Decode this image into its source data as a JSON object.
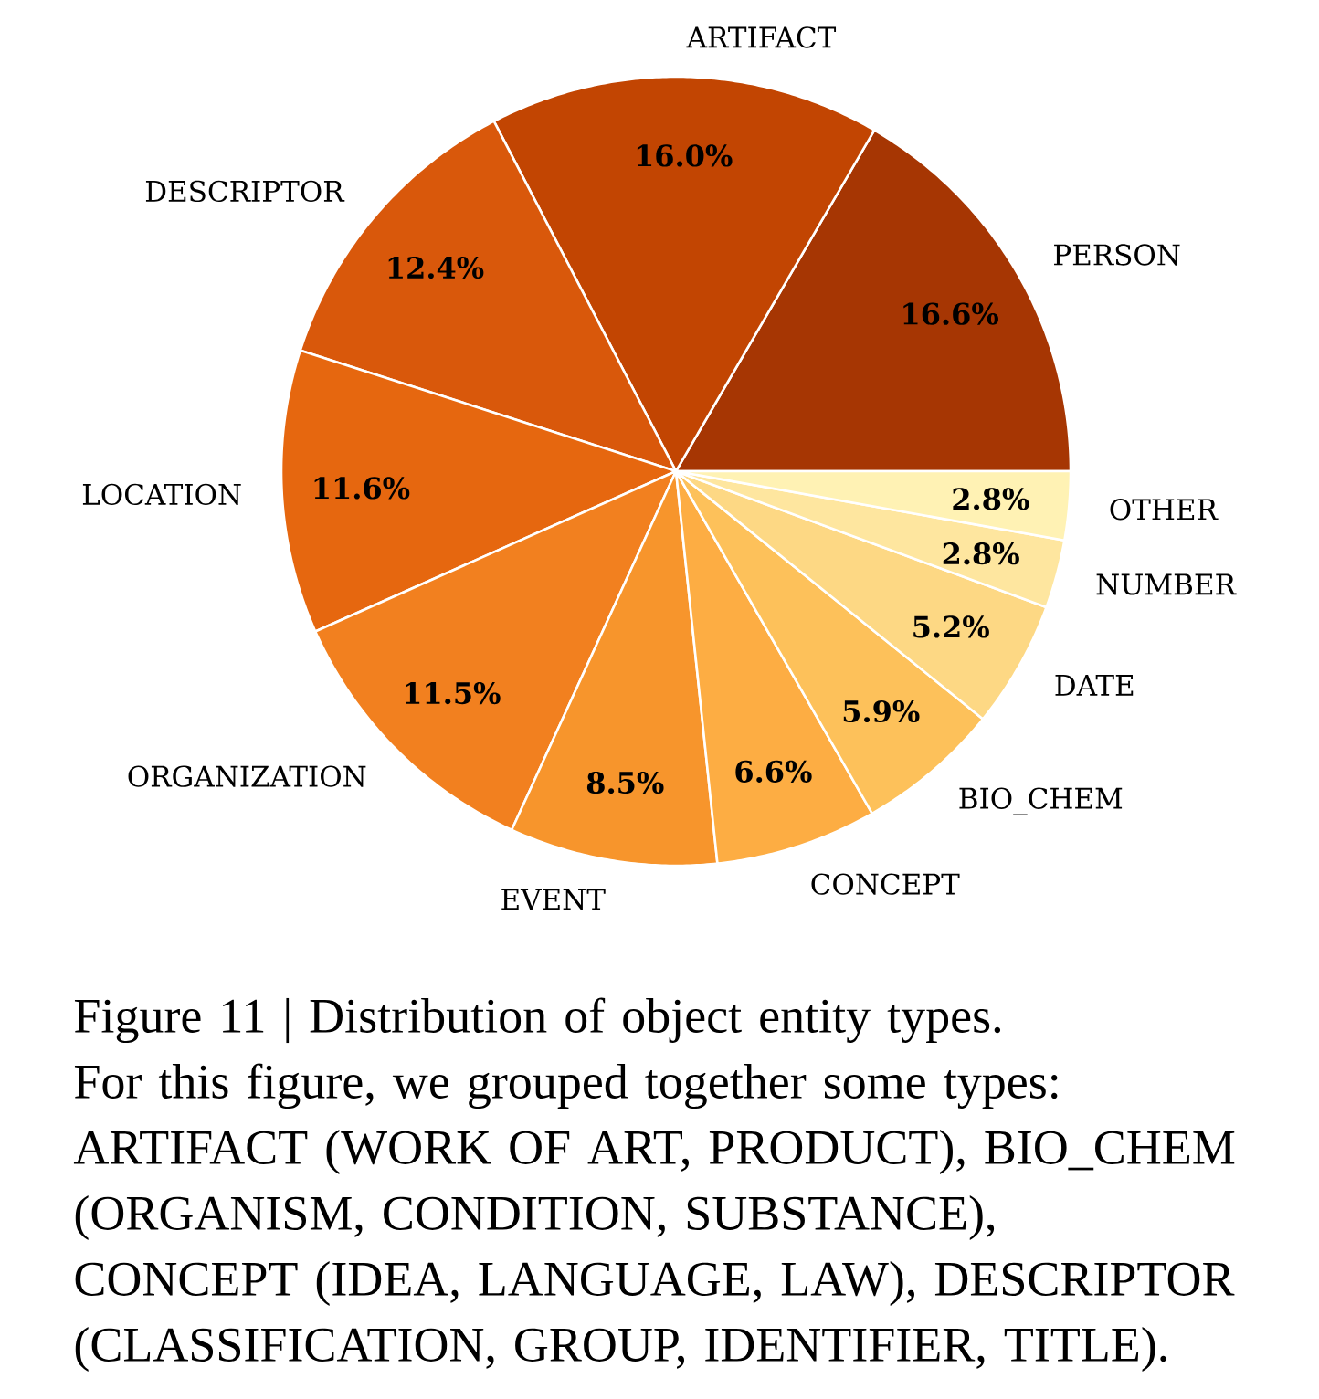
{
  "chart_data": {
    "type": "pie",
    "categories": [
      "PERSON",
      "ARTIFACT",
      "DESCRIPTOR",
      "LOCATION",
      "ORGANIZATION",
      "EVENT",
      "CONCEPT",
      "BIO_CHEM",
      "DATE",
      "NUMBER",
      "OTHER"
    ],
    "values": [
      16.6,
      16.0,
      12.4,
      11.6,
      11.5,
      8.5,
      6.6,
      5.9,
      5.2,
      2.8,
      2.8
    ],
    "colors": [
      "#a63603",
      "#c24502",
      "#d9580b",
      "#e6670f",
      "#f2801f",
      "#f7952c",
      "#fdad43",
      "#fdc15a",
      "#fdd884",
      "#fee69f",
      "#fff2b4"
    ],
    "value_labels": [
      "16.6%",
      "16.0%",
      "12.4%",
      "11.6%",
      "11.5%",
      "8.5%",
      "6.6%",
      "5.9%",
      "5.2%",
      "2.8%",
      "2.8%"
    ],
    "annotations": [
      "Figure 11 | Distribution of object entity types. For this figure, we grouped together some types: ARTIFACT (WORK OF ART, PRODUCT), BIO_CHEM (ORGANISM, CONDITION, SUBSTANCE), CONCEPT (IDEA, LANGUAGE, LAW), DESCRIPTOR (CLASSIFICATION, GROUP, IDENTIFIER, TITLE)."
    ]
  }
}
